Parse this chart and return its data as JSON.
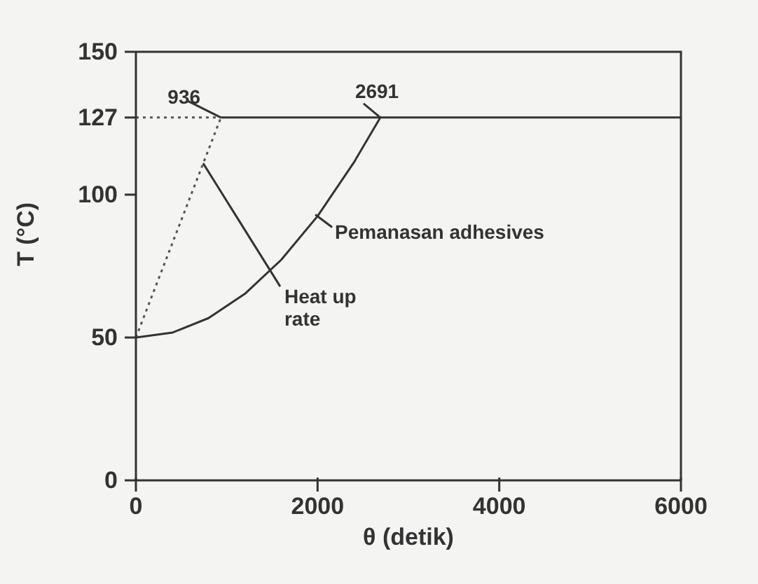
{
  "chart_data": {
    "type": "line",
    "xlabel": "θ (detik)",
    "ylabel": "T (°C)",
    "xlim": [
      0,
      6000
    ],
    "xticks": [
      0,
      2000,
      4000,
      6000
    ],
    "ylim": [
      0,
      150
    ],
    "yticks": [
      0,
      50,
      100,
      127,
      150
    ],
    "marker": "none",
    "series": [
      {
        "color": "#333333",
        "line_style": "solid",
        "x": [
          0,
          400,
          800,
          1200,
          1600,
          2000,
          2400,
          2691
        ],
        "values": [
          50,
          51.7,
          56.8,
          65.3,
          77.2,
          92.5,
          111.3,
          127
        ]
      },
      {
        "color": "#555555",
        "line_style": "dotted",
        "x": [
          0,
          936
        ],
        "values": [
          50,
          127
        ]
      },
      {
        "color": "#555555",
        "line_style": "dotted",
        "x": [
          0,
          936
        ],
        "values": [
          127,
          127
        ]
      },
      {
        "color": "#333333",
        "line_style": "solid",
        "x": [
          936,
          6000
        ],
        "values": [
          127,
          127
        ]
      }
    ],
    "annotations": [
      {
        "text": "936",
        "x": 936,
        "y": 127
      },
      {
        "text": "2691",
        "x": 2691,
        "y": 127
      },
      {
        "text": "Pemanasan adhesives",
        "x": 1975,
        "y": 93
      },
      {
        "text": "Heat up rate",
        "x": 740,
        "y": 111
      }
    ]
  }
}
